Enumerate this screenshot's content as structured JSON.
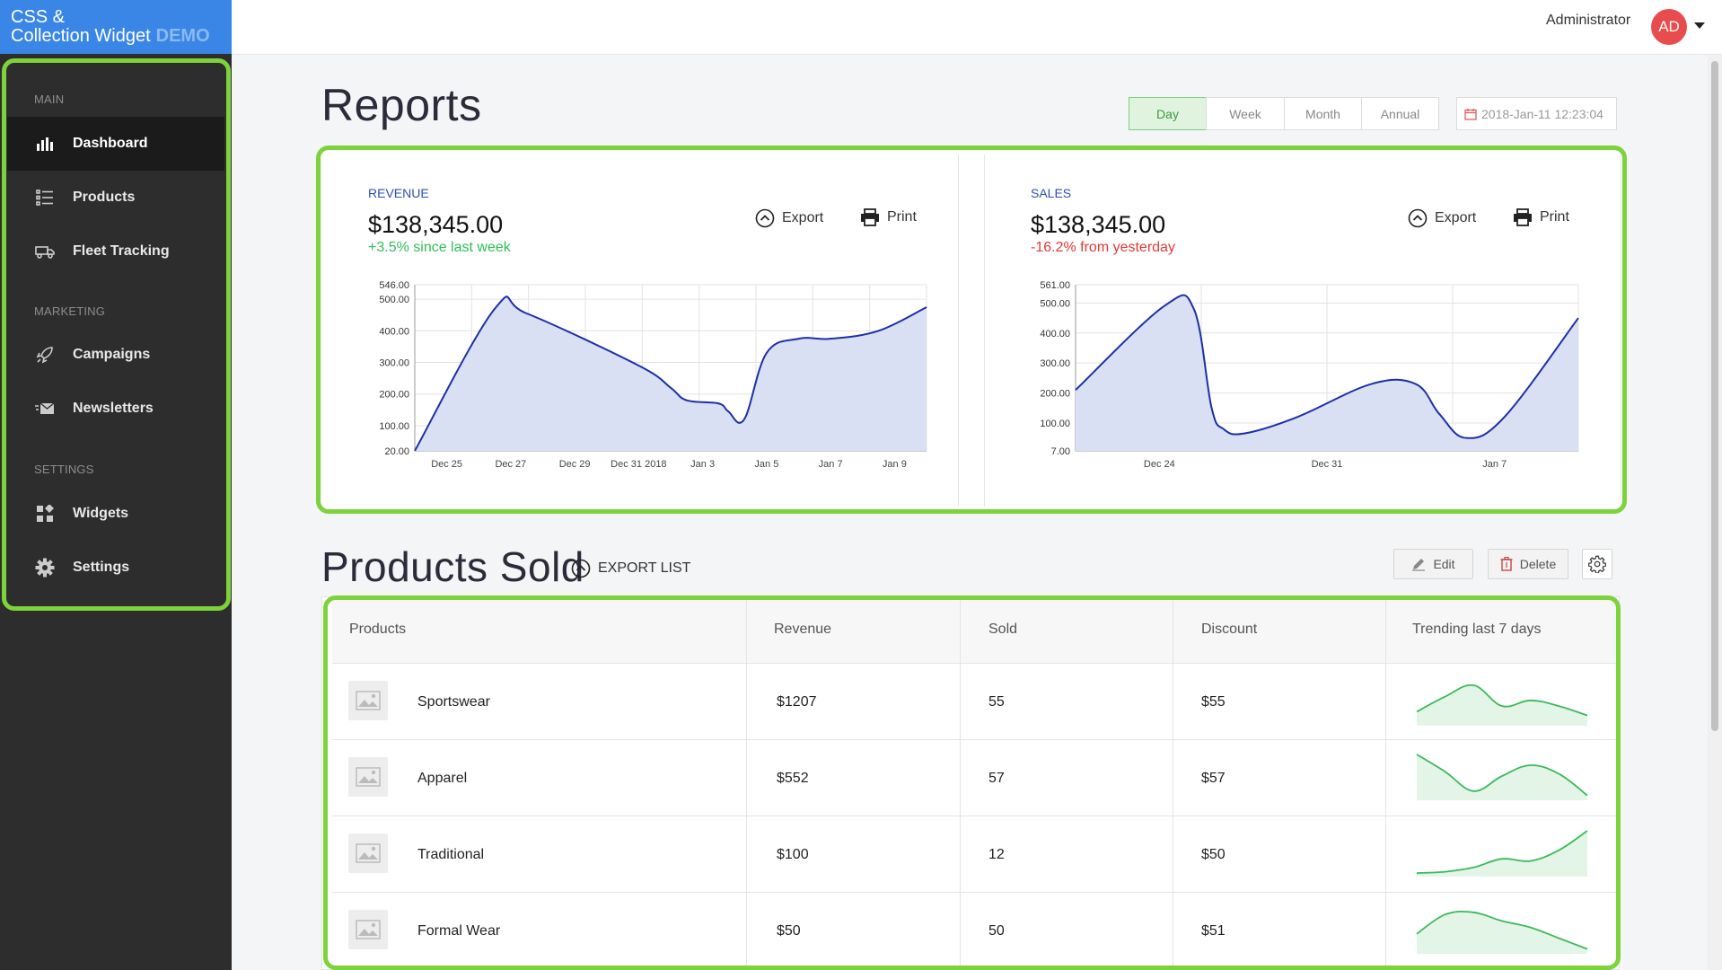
{
  "brand": {
    "line1": "CSS &",
    "line2": "Collection Widget",
    "badge": "DEMO"
  },
  "sidebar": {
    "sections": [
      {
        "label": "MAIN"
      },
      {
        "label": "MARKETING"
      },
      {
        "label": "SETTINGS"
      }
    ],
    "items": [
      {
        "label": "Dashboard",
        "icon": "bar-chart-icon",
        "active": true
      },
      {
        "label": "Products",
        "icon": "list-icon"
      },
      {
        "label": "Fleet Tracking",
        "icon": "truck-icon"
      },
      {
        "label": "Campaigns",
        "icon": "rocket-icon"
      },
      {
        "label": "Newsletters",
        "icon": "envelope-icon"
      },
      {
        "label": "Widgets",
        "icon": "widgets-icon"
      },
      {
        "label": "Settings",
        "icon": "gear-icon"
      }
    ]
  },
  "topbar": {
    "user_name": "Administrator",
    "avatar_initials": "AD"
  },
  "reports": {
    "title": "Reports",
    "ranges": [
      "Day",
      "Week",
      "Month",
      "Annual"
    ],
    "selected_range": "Day",
    "datetime": "2018-Jan-11 12:23:04"
  },
  "cards": [
    {
      "label": "REVENUE",
      "value": "$138,345.00",
      "delta": "+3.5% since last week",
      "delta_color": "#2fbf5a",
      "export_label": "Export",
      "print_label": "Print"
    },
    {
      "label": "SALES",
      "value": "$138,345.00",
      "delta": "-16.2% from yesterday",
      "delta_color": "#e53935",
      "export_label": "Export",
      "print_label": "Print"
    }
  ],
  "chart_data": [
    {
      "type": "area",
      "title": "REVENUE",
      "y_ticks": [
        "546.00",
        "500.00",
        "400.00",
        "300.00",
        "200.00",
        "100.00",
        "20.00"
      ],
      "ylim": [
        20,
        546
      ],
      "x_labels": [
        "Dec 25",
        "Dec 27",
        "Dec 29",
        "Dec 31 2018",
        "Jan 3",
        "Jan 5",
        "Jan 7",
        "Jan 9"
      ],
      "x_index_range": [
        0,
        16
      ],
      "points": [
        [
          0,
          20
        ],
        [
          2.5,
          470
        ],
        [
          3.5,
          455
        ],
        [
          7,
          290
        ],
        [
          8,
          220
        ],
        [
          8.5,
          180
        ],
        [
          9.5,
          170
        ],
        [
          9.8,
          145
        ],
        [
          10.3,
          120
        ],
        [
          11,
          330
        ],
        [
          12,
          375
        ],
        [
          13,
          375
        ],
        [
          14.5,
          400
        ],
        [
          16,
          475
        ]
      ],
      "grid": true,
      "line_color": "#1d2fa6",
      "fill_color": "#d9e0f4"
    },
    {
      "type": "area",
      "title": "SALES",
      "y_ticks": [
        "561.00",
        "500.00",
        "400.00",
        "300.00",
        "200.00",
        "100.00",
        "7.00"
      ],
      "ylim": [
        7,
        561
      ],
      "x_labels": [
        "Dec 24",
        "Dec 31",
        "Jan 7"
      ],
      "x_index_range": [
        0,
        17
      ],
      "points": [
        [
          0,
          210
        ],
        [
          3,
          490
        ],
        [
          4,
          480
        ],
        [
          4.6,
          150
        ],
        [
          5,
          80
        ],
        [
          5.7,
          65
        ],
        [
          7.5,
          120
        ],
        [
          10,
          230
        ],
        [
          11.5,
          230
        ],
        [
          12.3,
          130
        ],
        [
          13.2,
          50
        ],
        [
          14.5,
          120
        ],
        [
          17,
          450
        ]
      ],
      "grid": true,
      "line_color": "#1d2fa6",
      "fill_color": "#d9e0f4"
    }
  ],
  "products": {
    "title": "Products Sold",
    "export_label": "EXPORT LIST",
    "edit_label": "Edit",
    "delete_label": "Delete",
    "headers": [
      "Products",
      "Revenue",
      "Sold",
      "Discount",
      "Trending last 7 days"
    ],
    "rows": [
      {
        "name": "Sportswear",
        "revenue": "$1207",
        "sold": "55",
        "discount": "$55",
        "trend": [
          0.3,
          0.7,
          1.0,
          0.45,
          0.6,
          0.45,
          0.2
        ]
      },
      {
        "name": "Apparel",
        "revenue": "$552",
        "sold": "57",
        "discount": "$57",
        "trend": [
          1.0,
          0.6,
          0.15,
          0.5,
          0.75,
          0.55,
          0.05
        ]
      },
      {
        "name": "Traditional",
        "revenue": "$100",
        "sold": "12",
        "discount": "$50",
        "trend": [
          0.02,
          0.05,
          0.15,
          0.35,
          0.3,
          0.55,
          1.0
        ]
      },
      {
        "name": "Formal Wear",
        "revenue": "$50",
        "sold": "50",
        "discount": "$51",
        "trend": [
          0.4,
          0.85,
          0.9,
          0.7,
          0.55,
          0.3,
          0.05
        ]
      }
    ]
  }
}
